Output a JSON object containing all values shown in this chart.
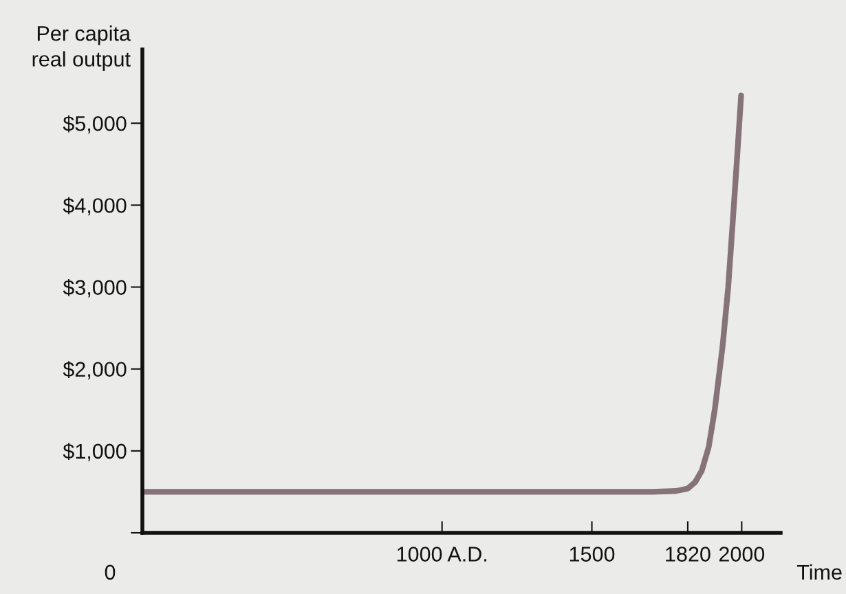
{
  "chart_data": {
    "type": "line",
    "xlabel": "Time",
    "ylabel": "Per capita\nreal output",
    "x": [
      0,
      500,
      1000,
      1500,
      1700,
      1780,
      1820,
      1845,
      1867,
      1890,
      1910,
      1936,
      1955,
      1970,
      1985,
      1998
    ],
    "series": [
      {
        "color": "#857379",
        "values": [
          500,
          500,
          500,
          500,
          500,
          510,
          540,
          620,
          760,
          1050,
          1500,
          2270,
          3000,
          3790,
          4600,
          5340
        ]
      }
    ],
    "xlim": [
      0,
      2130
    ],
    "xticks": [
      {
        "value": 1000,
        "label": "1000 A.D."
      },
      1500,
      1820,
      2000
    ],
    "ylim": [
      0,
      5900
    ],
    "yticks": [
      {
        "value": 0,
        "label": null
      },
      {
        "value": 1000,
        "label": "$1,000"
      },
      {
        "value": 2000,
        "label": "$2,000"
      },
      {
        "value": 3000,
        "label": "$3,000"
      },
      {
        "value": 4000,
        "label": "$4,000"
      },
      {
        "value": 5000,
        "label": "$5,000"
      }
    ],
    "annotations": [
      "0"
    ],
    "grid": false,
    "legend": false,
    "marker": "none",
    "line_style": "solid"
  }
}
